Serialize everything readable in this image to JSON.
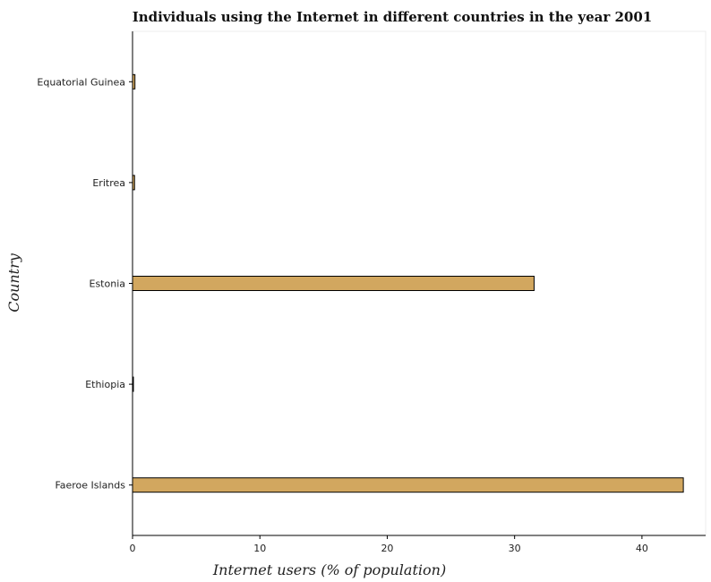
{
  "chart_data": {
    "type": "bar",
    "orientation": "horizontal",
    "title": "Individuals using the Internet in different countries in the year 2001",
    "xlabel": "Internet users (% of population)",
    "ylabel": "Country",
    "categories": [
      "Equatorial Guinea",
      "Eritrea",
      "Estonia",
      "Ethiopia",
      "Faeroe Islands"
    ],
    "values": [
      0.19,
      0.16,
      31.53,
      0.04,
      43.25
    ],
    "xlim": [
      0,
      45
    ],
    "xticks": [
      "0",
      "10",
      "20",
      "30",
      "40"
    ],
    "xtick_values": [
      0,
      10,
      20,
      30,
      40
    ],
    "grid": false,
    "legend": "none",
    "colors": {
      "bar_fill": "#d2a75f",
      "bar_stroke": "#000000",
      "axis": "#000000"
    }
  }
}
